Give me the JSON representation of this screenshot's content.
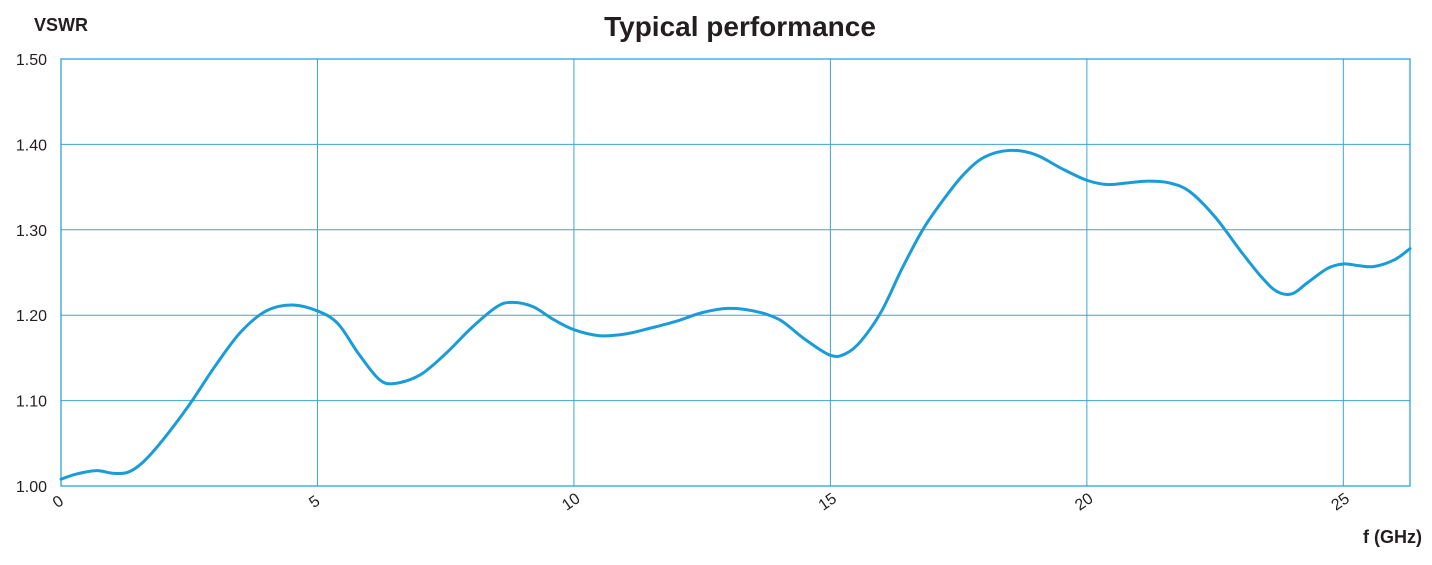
{
  "chart_data": {
    "type": "line",
    "title": "Typical performance",
    "ylabel": "VSWR",
    "xlabel": "f (GHz)",
    "xlim": [
      0,
      26.3
    ],
    "ylim": [
      1.0,
      1.5
    ],
    "xticks": [
      0,
      5,
      10,
      15,
      20,
      25
    ],
    "xtick_labels": [
      "0",
      "5",
      "10",
      "15",
      "20",
      "25"
    ],
    "yticks": [
      1.0,
      1.1,
      1.2,
      1.3,
      1.4,
      1.5
    ],
    "ytick_labels": [
      "1.00",
      "1.10",
      "1.20",
      "1.30",
      "1.40",
      "1.50"
    ],
    "grid": true,
    "colors": {
      "line": "#1a9cd8",
      "grid": "#3aa6d6",
      "axes": "#1a9cd8",
      "text": "#231f20"
    },
    "series": [
      {
        "x": [
          0,
          0.3,
          0.7,
          1.0,
          1.3,
          1.6,
          2.0,
          2.5,
          3.0,
          3.5,
          4.0,
          4.5,
          5.0,
          5.4,
          5.8,
          6.2,
          6.5,
          7.0,
          7.5,
          8.0,
          8.5,
          8.8,
          9.2,
          9.6,
          10.0,
          10.5,
          11.0,
          11.5,
          12.0,
          12.5,
          13.0,
          13.5,
          14.0,
          14.5,
          15.0,
          15.3,
          15.6,
          16.0,
          16.4,
          16.8,
          17.2,
          17.6,
          18.0,
          18.5,
          19.0,
          19.5,
          20.0,
          20.4,
          20.8,
          21.2,
          21.6,
          22.0,
          22.5,
          23.0,
          23.4,
          23.7,
          24.0,
          24.3,
          24.7,
          25.0,
          25.3,
          25.6,
          26.0,
          26.3
        ],
        "y": [
          1.008,
          1.014,
          1.018,
          1.015,
          1.016,
          1.028,
          1.055,
          1.095,
          1.14,
          1.18,
          1.205,
          1.212,
          1.205,
          1.19,
          1.155,
          1.125,
          1.12,
          1.13,
          1.155,
          1.185,
          1.21,
          1.215,
          1.21,
          1.195,
          1.183,
          1.176,
          1.178,
          1.185,
          1.193,
          1.203,
          1.208,
          1.205,
          1.195,
          1.172,
          1.153,
          1.155,
          1.17,
          1.205,
          1.255,
          1.3,
          1.335,
          1.365,
          1.385,
          1.393,
          1.388,
          1.372,
          1.358,
          1.353,
          1.355,
          1.357,
          1.355,
          1.345,
          1.315,
          1.275,
          1.245,
          1.228,
          1.225,
          1.238,
          1.255,
          1.26,
          1.258,
          1.257,
          1.265,
          1.278
        ]
      }
    ]
  }
}
